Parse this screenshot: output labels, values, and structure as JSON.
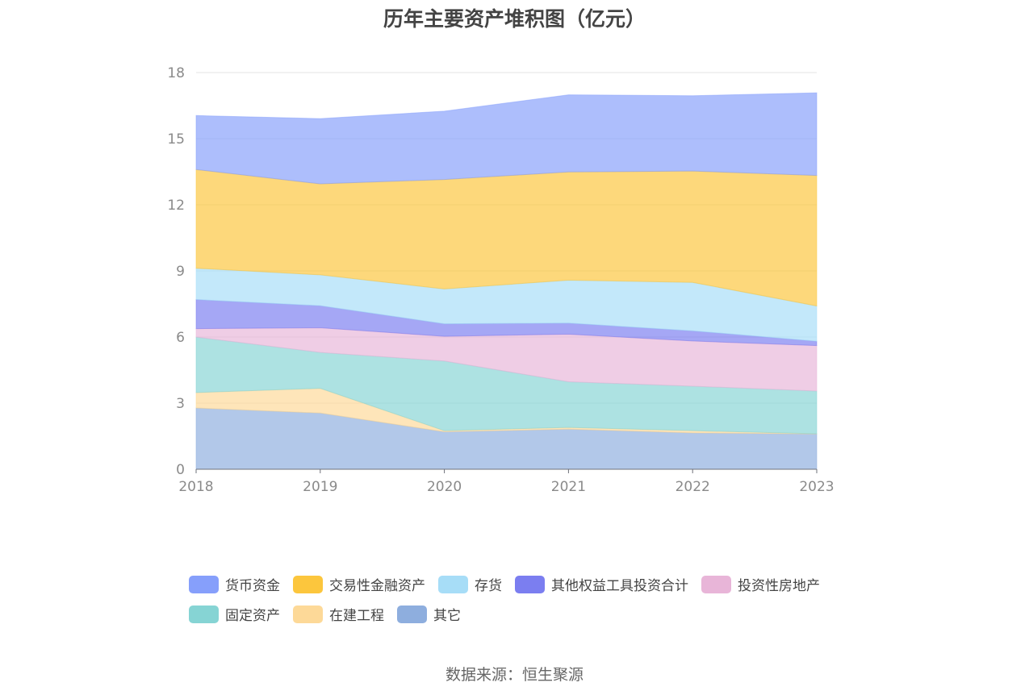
{
  "title": "历年主要资产堆积图（亿元）",
  "source": "数据来源：恒生聚源",
  "chart_data": {
    "type": "area",
    "stacked": true,
    "categories": [
      "2018",
      "2019",
      "2020",
      "2021",
      "2022",
      "2023"
    ],
    "ylim": [
      0,
      18
    ],
    "yticks": [
      "0",
      "3",
      "6",
      "9",
      "12",
      "15",
      "18"
    ],
    "grid": true,
    "legend_position": "bottom",
    "series": [
      {
        "name": "其它",
        "color": "#8eaede",
        "values": [
          2.78,
          2.55,
          1.7,
          1.82,
          1.65,
          1.6
        ]
      },
      {
        "name": "在建工程",
        "color": "#fdd998",
        "values": [
          0.7,
          1.12,
          0.05,
          0.08,
          0.1,
          0.01
        ]
      },
      {
        "name": "固定资产",
        "color": "#86d4d4",
        "values": [
          2.52,
          1.63,
          3.16,
          2.07,
          2.02,
          1.94
        ]
      },
      {
        "name": "投资性房地产",
        "color": "#e8b5d8",
        "values": [
          0.38,
          1.12,
          1.12,
          2.16,
          2.05,
          2.06
        ]
      },
      {
        "name": "其他权益工具投资合计",
        "color": "#7b7ef0",
        "values": [
          1.32,
          1.0,
          0.57,
          0.5,
          0.46,
          0.2
        ]
      },
      {
        "name": "存货",
        "color": "#a7ddf7",
        "values": [
          1.42,
          1.4,
          1.58,
          1.95,
          2.2,
          1.6
        ]
      },
      {
        "name": "交易性金融资产",
        "color": "#fcc63d",
        "values": [
          4.48,
          4.13,
          4.97,
          4.91,
          5.05,
          5.92
        ]
      },
      {
        "name": "货币资金",
        "color": "#869ffb",
        "values": [
          2.45,
          2.96,
          3.1,
          3.5,
          3.42,
          3.75
        ]
      }
    ],
    "legend_order": [
      "货币资金",
      "交易性金融资产",
      "存货",
      "其他权益工具投资合计",
      "投资性房地产",
      "固定资产",
      "在建工程",
      "其它"
    ]
  }
}
